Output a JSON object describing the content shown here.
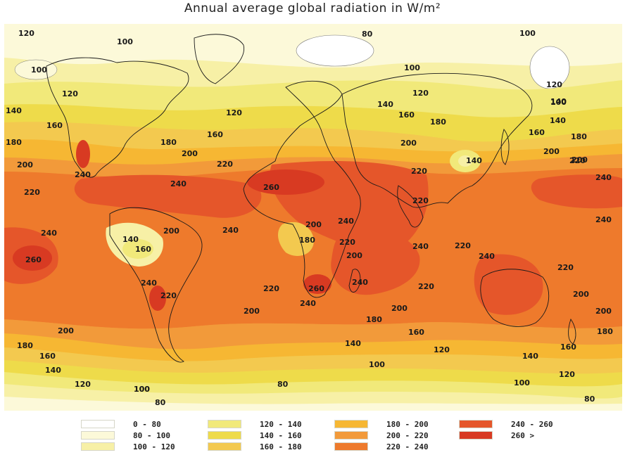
{
  "title": "Annual average global radiation in W/m²",
  "legend": [
    {
      "label": "0 - 80",
      "color": "#ffffff"
    },
    {
      "label": "80 - 100",
      "color": "#fcf9d9"
    },
    {
      "label": "100 - 120",
      "color": "#f7f0a6"
    },
    {
      "label": "120 - 140",
      "color": "#f1e97a"
    },
    {
      "label": "140 - 160",
      "color": "#eedb4a"
    },
    {
      "label": "160 - 180",
      "color": "#f3c94f"
    },
    {
      "label": "180 - 200",
      "color": "#f6b733"
    },
    {
      "label": "200 - 220",
      "color": "#f29a3a"
    },
    {
      "label": "220 - 240",
      "color": "#ee7a2c"
    },
    {
      "label": "240 - 260",
      "color": "#e5562a"
    },
    {
      "label": "260 >",
      "color": "#d83a22"
    }
  ],
  "contour_labels": [
    "120",
    "100",
    "80",
    "100",
    "100",
    "100",
    "120",
    "120",
    "100",
    "140",
    "120",
    "140",
    "120",
    "140",
    "160",
    "160",
    "140",
    "160",
    "160",
    "180",
    "180",
    "180",
    "200",
    "180",
    "200",
    "200",
    "220",
    "220",
    "240",
    "200",
    "200",
    "240",
    "220",
    "240",
    "260",
    "220",
    "140",
    "220",
    "240",
    "240",
    "140",
    "200",
    "240",
    "160",
    "200",
    "240",
    "180",
    "240",
    "240",
    "200",
    "260",
    "220",
    "220",
    "240",
    "240",
    "220",
    "260",
    "220",
    "200",
    "240",
    "220",
    "220",
    "200",
    "200",
    "200",
    "180",
    "200",
    "180",
    "160",
    "180",
    "160",
    "140",
    "160",
    "100",
    "140",
    "140",
    "120",
    "120",
    "120",
    "100",
    "100",
    "80",
    "100",
    "80",
    "80"
  ]
}
